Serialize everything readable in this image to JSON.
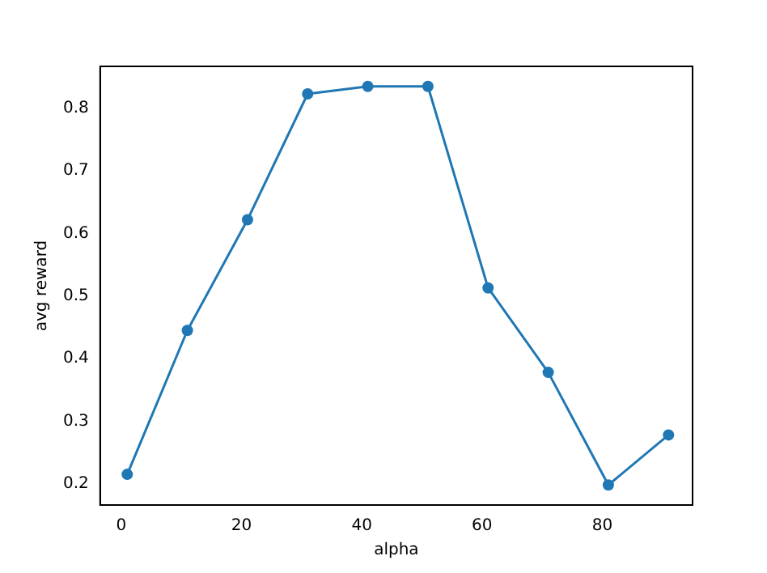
{
  "chart_data": {
    "type": "line",
    "xlabel": "alpha",
    "ylabel": "avg reward",
    "x": [
      1,
      11,
      21,
      31,
      41,
      51,
      61,
      71,
      81,
      91
    ],
    "series": [
      {
        "color": "#1f77b4",
        "values": [
          0.215,
          0.445,
          0.622,
          0.823,
          0.835,
          0.835,
          0.513,
          0.378,
          0.198,
          0.278
        ]
      }
    ],
    "xlim": [
      -3.5,
      95
    ],
    "xticks": [
      0,
      20,
      40,
      60,
      80
    ],
    "ylim": [
      0.166,
      0.867
    ],
    "yticks": [
      0.2,
      0.3,
      0.4,
      0.5,
      0.6,
      0.7,
      0.8
    ],
    "marker": "circle",
    "line_style": "solid",
    "grid": false,
    "legend": false
  }
}
